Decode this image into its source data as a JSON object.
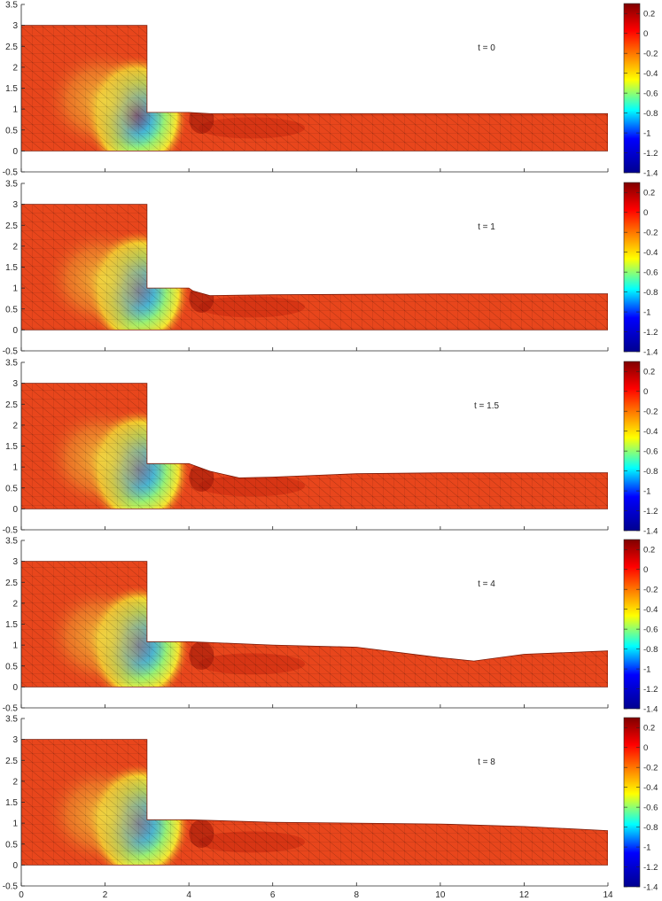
{
  "x_ticks": [
    "0",
    "2",
    "4",
    "6",
    "8",
    "10",
    "12",
    "14"
  ],
  "y_ticks": [
    "-0.5",
    "0",
    "0.5",
    "1",
    "1.5",
    "2",
    "2.5",
    "3",
    "3.5"
  ],
  "colorbar_ticks": [
    "0.2",
    "0",
    "-0.2",
    "-0.4",
    "-0.6",
    "-0.8",
    "-1",
    "-1.2",
    "-1.4"
  ],
  "colors": {
    "colormap": [
      "#00008f",
      "#0000ff",
      "#00ffff",
      "#ffff00",
      "#ff0000",
      "#800000"
    ],
    "mesh": "#000000"
  },
  "chart_data": [
    {
      "type": "heatmap",
      "label": "t = 0",
      "xlim": [
        0,
        14
      ],
      "ylim": [
        -0.5,
        3.5
      ],
      "clim": [
        -1.4,
        0.3
      ],
      "gate_x": 3,
      "reservoir_h": 3,
      "step_x": 4,
      "step_h": 1.08,
      "surface": [
        [
          3,
          0.92
        ],
        [
          4,
          0.92
        ],
        [
          4.5,
          0.89
        ],
        [
          6,
          0.89
        ],
        [
          10,
          0.89
        ],
        [
          14,
          0.89
        ]
      ],
      "min_value": -1.4,
      "min_at": [
        2.75,
        0.85
      ]
    },
    {
      "type": "heatmap",
      "label": "t = 1",
      "xlim": [
        0,
        14
      ],
      "ylim": [
        -0.5,
        3.5
      ],
      "clim": [
        -1.4,
        0.3
      ],
      "gate_x": 3,
      "reservoir_h": 3,
      "step_x": 4,
      "step_h": 1.0,
      "surface": [
        [
          3,
          1.0
        ],
        [
          4,
          1.0
        ],
        [
          4.1,
          0.93
        ],
        [
          4.5,
          0.82
        ],
        [
          6,
          0.84
        ],
        [
          10,
          0.86
        ],
        [
          14,
          0.86
        ]
      ],
      "min_value": -1.0,
      "min_at": [
        2.8,
        0.95
      ]
    },
    {
      "type": "heatmap",
      "label": "t = 1.5",
      "xlim": [
        0,
        14
      ],
      "ylim": [
        -0.5,
        3.5
      ],
      "clim": [
        -1.4,
        0.3
      ],
      "gate_x": 3,
      "reservoir_h": 3,
      "step_x": 4,
      "step_h": 1.08,
      "surface": [
        [
          3,
          1.08
        ],
        [
          4,
          1.08
        ],
        [
          4.5,
          0.9
        ],
        [
          5.2,
          0.74
        ],
        [
          6,
          0.76
        ],
        [
          8,
          0.84
        ],
        [
          10,
          0.86
        ],
        [
          14,
          0.86
        ]
      ],
      "min_value": -0.95,
      "min_at": [
        2.8,
        0.95
      ]
    },
    {
      "type": "heatmap",
      "label": "t = 4",
      "xlim": [
        0,
        14
      ],
      "ylim": [
        -0.5,
        3.5
      ],
      "clim": [
        -1.4,
        0.3
      ],
      "gate_x": 3,
      "reservoir_h": 3,
      "step_x": 4,
      "step_h": 1.08,
      "surface": [
        [
          3,
          1.08
        ],
        [
          4,
          1.08
        ],
        [
          6,
          1.0
        ],
        [
          8,
          0.95
        ],
        [
          10,
          0.7
        ],
        [
          10.8,
          0.62
        ],
        [
          12,
          0.78
        ],
        [
          14,
          0.86
        ]
      ],
      "min_value": -0.95,
      "min_at": [
        2.8,
        1.0
      ]
    },
    {
      "type": "heatmap",
      "label": "t = 8",
      "xlim": [
        0,
        14
      ],
      "ylim": [
        -0.5,
        3.5
      ],
      "clim": [
        -1.4,
        0.3
      ],
      "gate_x": 3,
      "reservoir_h": 3,
      "step_x": 4,
      "step_h": 1.08,
      "surface": [
        [
          3,
          1.08
        ],
        [
          4,
          1.08
        ],
        [
          6,
          1.02
        ],
        [
          8,
          1.0
        ],
        [
          10,
          0.98
        ],
        [
          12,
          0.92
        ],
        [
          14,
          0.82
        ]
      ],
      "min_value": -0.9,
      "min_at": [
        2.8,
        1.0
      ]
    }
  ]
}
